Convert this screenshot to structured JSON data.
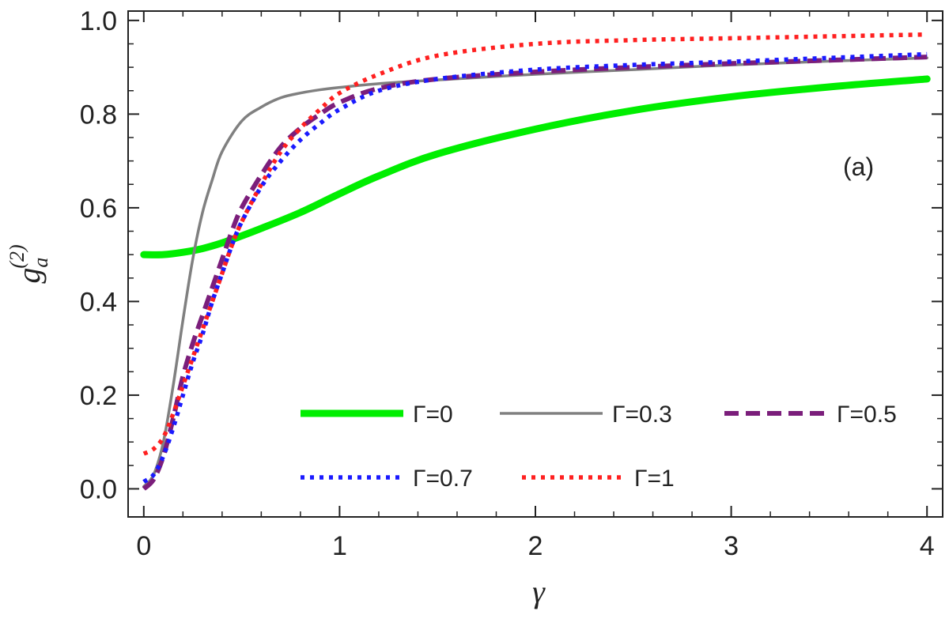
{
  "chart_data": {
    "type": "line",
    "title": "",
    "xlabel": "γ",
    "ylabel": {
      "base": "g",
      "sub": "a",
      "sup": "(2)"
    },
    "xlim": [
      -0.08,
      4.08
    ],
    "ylim": [
      -0.06,
      1.02
    ],
    "xticks": [
      0,
      1,
      2,
      3,
      4
    ],
    "xtick_labels": [
      "0",
      "1",
      "2",
      "3",
      "4"
    ],
    "yticks": [
      0.0,
      0.2,
      0.4,
      0.6,
      0.8,
      1.0
    ],
    "ytick_labels": [
      "0.0",
      "0.2",
      "0.4",
      "0.6",
      "0.8",
      "1.0"
    ],
    "grid": false,
    "legend_placement": "bottom-right",
    "annotation": "(a)",
    "series": [
      {
        "name": "Γ=0",
        "color": "#00ee00",
        "dash": "solid",
        "x": [
          0,
          0.1,
          0.2,
          0.3,
          0.4,
          0.5,
          0.6,
          0.8,
          1.0,
          1.2,
          1.5,
          2.0,
          2.5,
          3.0,
          3.5,
          4.0
        ],
        "y": [
          0.5,
          0.5,
          0.505,
          0.513,
          0.525,
          0.54,
          0.556,
          0.59,
          0.63,
          0.668,
          0.715,
          0.768,
          0.808,
          0.837,
          0.858,
          0.875
        ]
      },
      {
        "name": "Γ=0.3",
        "color": "#808080",
        "dash": "solid",
        "x": [
          0,
          0.05,
          0.1,
          0.15,
          0.2,
          0.25,
          0.3,
          0.35,
          0.4,
          0.5,
          0.6,
          0.7,
          0.8,
          0.9,
          1.0,
          1.2,
          1.5,
          2.0,
          2.5,
          3.0,
          3.5,
          4.0
        ],
        "y": [
          0.005,
          0.03,
          0.1,
          0.22,
          0.36,
          0.49,
          0.59,
          0.66,
          0.72,
          0.785,
          0.815,
          0.835,
          0.845,
          0.852,
          0.857,
          0.865,
          0.873,
          0.885,
          0.895,
          0.905,
          0.913,
          0.92
        ]
      },
      {
        "name": "Γ=0.5",
        "color": "#7b1e7b",
        "dash": "dashed",
        "x": [
          0,
          0.05,
          0.1,
          0.15,
          0.2,
          0.25,
          0.3,
          0.35,
          0.4,
          0.45,
          0.5,
          0.6,
          0.7,
          0.8,
          0.9,
          1.0,
          1.2,
          1.5,
          2.0,
          2.5,
          3.0,
          3.5,
          4.0
        ],
        "y": [
          0.0,
          0.02,
          0.07,
          0.15,
          0.24,
          0.31,
          0.37,
          0.43,
          0.49,
          0.55,
          0.6,
          0.67,
          0.73,
          0.77,
          0.8,
          0.825,
          0.855,
          0.875,
          0.89,
          0.9,
          0.908,
          0.915,
          0.922
        ]
      },
      {
        "name": "Γ=0.7",
        "color": "#1a1aff",
        "dash": "dotted",
        "x": [
          0,
          0.05,
          0.1,
          0.15,
          0.2,
          0.25,
          0.3,
          0.35,
          0.4,
          0.45,
          0.5,
          0.6,
          0.7,
          0.8,
          0.9,
          1.0,
          1.2,
          1.5,
          2.0,
          2.5,
          3.0,
          3.5,
          4.0
        ],
        "y": [
          0.015,
          0.03,
          0.07,
          0.13,
          0.2,
          0.27,
          0.33,
          0.4,
          0.46,
          0.52,
          0.57,
          0.645,
          0.7,
          0.745,
          0.78,
          0.81,
          0.85,
          0.875,
          0.895,
          0.905,
          0.912,
          0.92,
          0.928
        ]
      },
      {
        "name": "Γ=1",
        "color": "#ff2020",
        "dash": "dotted",
        "x": [
          0,
          0.05,
          0.1,
          0.15,
          0.2,
          0.25,
          0.3,
          0.35,
          0.4,
          0.45,
          0.5,
          0.6,
          0.7,
          0.8,
          0.9,
          1.0,
          1.2,
          1.5,
          2.0,
          2.5,
          3.0,
          3.5,
          4.0
        ],
        "y": [
          0.075,
          0.085,
          0.11,
          0.16,
          0.22,
          0.28,
          0.34,
          0.4,
          0.46,
          0.52,
          0.57,
          0.65,
          0.72,
          0.77,
          0.81,
          0.845,
          0.885,
          0.925,
          0.95,
          0.958,
          0.962,
          0.966,
          0.97
        ]
      }
    ]
  }
}
